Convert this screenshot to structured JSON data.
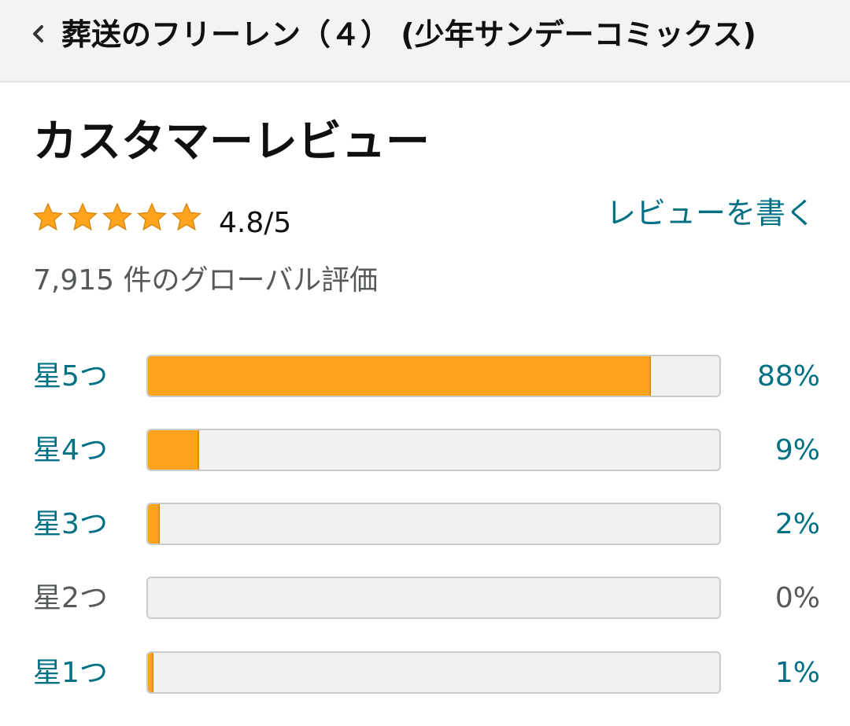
{
  "header": {
    "title": "葬送のフリーレン（４） (少年サンデーコミックス)",
    "back_icon": "chevron-left-icon"
  },
  "reviews": {
    "section_title": "カスタマーレビュー",
    "star_count": 5,
    "star_icon": "star-icon",
    "star_color": "#ffa41c",
    "rating_text": "4.8/5",
    "write_review_label": "レビューを書く",
    "global_ratings_text": "7,915 件のグローバル評価",
    "histogram": [
      {
        "label": "星5つ",
        "percent_label": "88%",
        "fraction": 0.88,
        "link": true
      },
      {
        "label": "星4つ",
        "percent_label": "9%",
        "fraction": 0.09,
        "link": true
      },
      {
        "label": "星3つ",
        "percent_label": "2%",
        "fraction": 0.02,
        "link": true
      },
      {
        "label": "星2つ",
        "percent_label": "0%",
        "fraction": 0.0,
        "link": false
      },
      {
        "label": "星1つ",
        "percent_label": "1%",
        "fraction": 0.01,
        "link": true
      }
    ]
  },
  "colors": {
    "link": "#007185",
    "bar_fill": "#ffa41c",
    "bar_track": "#f0f2f2",
    "text": "#0f1111",
    "muted": "#565959"
  }
}
